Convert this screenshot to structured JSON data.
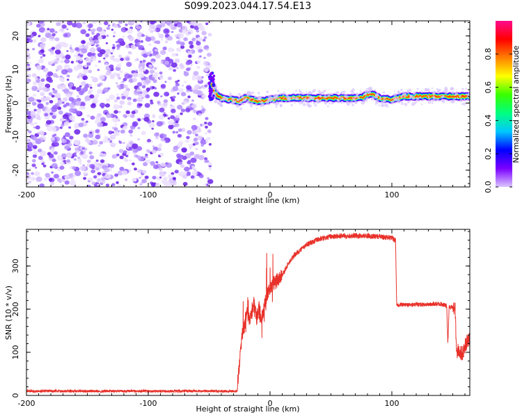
{
  "title": "S099.2023.044.17.54.E13",
  "colors": {
    "snr_line": "#e8312a",
    "noise": "#9d63f0",
    "noise_dark": "#6a1fe6",
    "spectral_scale": [
      "#dcc6ff",
      "#7b00ff",
      "#0000ff",
      "#00c8ff",
      "#00ff80",
      "#39ff00",
      "#ffff00",
      "#ff8000",
      "#ff0000",
      "#ff0a8c"
    ]
  },
  "chart_data": [
    {
      "type": "heatmap",
      "xlabel": "Height of straight line (km)",
      "ylabel": "Frequency (Hz)",
      "xlim": [
        -200,
        164
      ],
      "ylim": [
        -25,
        24.5
      ],
      "xticks": [
        -200,
        -100,
        0,
        100
      ],
      "xtick_labels": [
        "-200",
        "-100",
        "0",
        "100"
      ],
      "yticks": [
        -20,
        -10,
        0,
        10,
        20
      ],
      "ytick_labels": [
        "-20",
        "-10",
        "0",
        "10",
        "20"
      ],
      "noise_region_x": [
        -200,
        -49
      ],
      "signal_track": {
        "x": [
          -48,
          -46,
          -44,
          -40,
          -35,
          -30,
          -25,
          -20,
          -15,
          -10,
          0,
          10,
          20,
          40,
          60,
          75,
          80,
          85,
          90,
          100,
          110,
          130,
          150,
          164
        ],
        "freq_hz": [
          6,
          3,
          2.5,
          1.5,
          1,
          1,
          0.5,
          1.5,
          1,
          0.5,
          1,
          1.5,
          1.5,
          1.5,
          1.5,
          1.5,
          2.5,
          2.5,
          1.5,
          1,
          2,
          2,
          2,
          2
        ]
      },
      "colorbar": {
        "label": "Normalized spectral amplitude",
        "range": [
          0,
          1
        ],
        "ticks": [
          0.0,
          0.2,
          0.4,
          0.6,
          0.8
        ],
        "tick_labels": [
          "0.0",
          "0.2",
          "0.4",
          "0.6",
          "0.8"
        ]
      }
    },
    {
      "type": "line",
      "xlabel": "Height of straight line (km)",
      "ylabel": "SNR (10 * v/v)",
      "xlim": [
        -200,
        164
      ],
      "ylim": [
        0,
        385
      ],
      "xticks": [
        -200,
        -100,
        0,
        100
      ],
      "xtick_labels": [
        "-200",
        "-100",
        "0",
        "100"
      ],
      "yticks": [
        0,
        100,
        200,
        300
      ],
      "ytick_labels": [
        "0",
        "100",
        "200",
        "300"
      ],
      "series": [
        {
          "x": [
            -200,
            -150,
            -100,
            -50,
            -27,
            -25,
            -23,
            -21,
            -19,
            -17,
            -15,
            -13,
            -11,
            -9,
            -7,
            -5,
            -3,
            0,
            5,
            10,
            15,
            20,
            30,
            40,
            50,
            60,
            70,
            80,
            90,
            100,
            103,
            104,
            105,
            120,
            140,
            145,
            146,
            147,
            150,
            152,
            153,
            155,
            158,
            160,
            164
          ],
          "y": [
            10,
            10,
            10,
            10,
            10,
            80,
            140,
            160,
            200,
            170,
            190,
            215,
            180,
            205,
            175,
            200,
            230,
            250,
            265,
            280,
            305,
            325,
            350,
            362,
            368,
            370,
            370,
            370,
            368,
            365,
            360,
            210,
            210,
            210,
            212,
            208,
            120,
            205,
            205,
            200,
            100,
            105,
            95,
            115,
            135
          ]
        }
      ]
    }
  ]
}
